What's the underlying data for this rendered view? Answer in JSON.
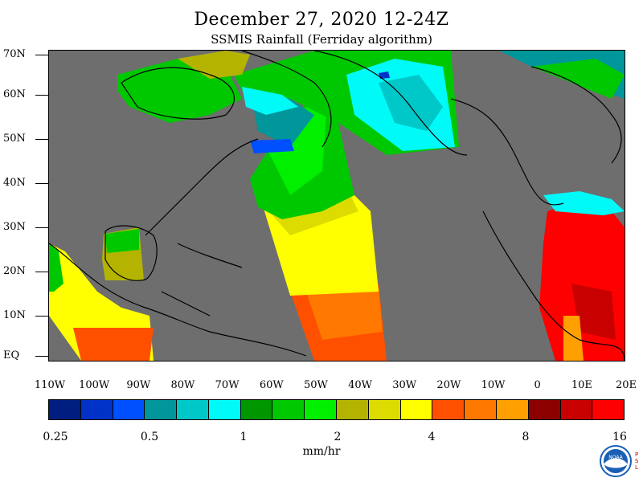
{
  "title": "December 27, 2020 12-24Z",
  "subtitle": "SSMIS Rainfall (Ferriday algorithm)",
  "map": {
    "lat_labels": [
      "70N",
      "60N",
      "50N",
      "40N",
      "30N",
      "20N",
      "10N",
      "EQ"
    ],
    "lon_labels": [
      "110W",
      "100W",
      "90W",
      "80W",
      "70W",
      "60W",
      "50W",
      "40W",
      "30W",
      "20W",
      "10W",
      "0",
      "10E",
      "20E"
    ],
    "background_color": "#6e6e6e",
    "land_outline_color": "#000000"
  },
  "colorbar": {
    "colors": [
      "#001e80",
      "#0032c8",
      "#0050ff",
      "#00969a",
      "#00c8c8",
      "#00faf8",
      "#009600",
      "#00c800",
      "#00f000",
      "#b4b400",
      "#dcdc00",
      "#ffff00",
      "#ff5000",
      "#ff7800",
      "#ffa000",
      "#8c0000",
      "#c80000",
      "#ff0000"
    ],
    "tick_labels": [
      "0.25",
      "0.5",
      "1",
      "2",
      "4",
      "8",
      "16"
    ],
    "units": "mm/hr"
  },
  "logo": {
    "name": "NOAA",
    "side_text": "PSL"
  }
}
